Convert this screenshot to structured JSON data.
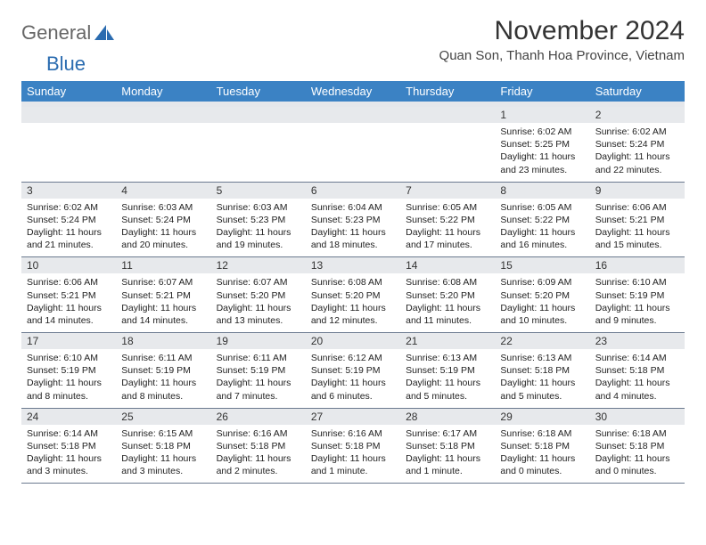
{
  "logo": {
    "text1": "General",
    "text2": "Blue"
  },
  "title": "November 2024",
  "location": "Quan Son, Thanh Hoa Province, Vietnam",
  "colors": {
    "header_bg": "#3b82c4",
    "header_text": "#ffffff",
    "daynum_bg": "#e7e9ec",
    "border": "#6b7a8f",
    "logo_blue": "#2b6cb0",
    "logo_gray": "#666666",
    "body_text": "#222222",
    "page_bg": "#ffffff"
  },
  "day_headers": [
    "Sunday",
    "Monday",
    "Tuesday",
    "Wednesday",
    "Thursday",
    "Friday",
    "Saturday"
  ],
  "weeks": [
    [
      null,
      null,
      null,
      null,
      null,
      {
        "n": "1",
        "sr": "Sunrise: 6:02 AM",
        "ss": "Sunset: 5:25 PM",
        "dl1": "Daylight: 11 hours",
        "dl2": "and 23 minutes."
      },
      {
        "n": "2",
        "sr": "Sunrise: 6:02 AM",
        "ss": "Sunset: 5:24 PM",
        "dl1": "Daylight: 11 hours",
        "dl2": "and 22 minutes."
      }
    ],
    [
      {
        "n": "3",
        "sr": "Sunrise: 6:02 AM",
        "ss": "Sunset: 5:24 PM",
        "dl1": "Daylight: 11 hours",
        "dl2": "and 21 minutes."
      },
      {
        "n": "4",
        "sr": "Sunrise: 6:03 AM",
        "ss": "Sunset: 5:24 PM",
        "dl1": "Daylight: 11 hours",
        "dl2": "and 20 minutes."
      },
      {
        "n": "5",
        "sr": "Sunrise: 6:03 AM",
        "ss": "Sunset: 5:23 PM",
        "dl1": "Daylight: 11 hours",
        "dl2": "and 19 minutes."
      },
      {
        "n": "6",
        "sr": "Sunrise: 6:04 AM",
        "ss": "Sunset: 5:23 PM",
        "dl1": "Daylight: 11 hours",
        "dl2": "and 18 minutes."
      },
      {
        "n": "7",
        "sr": "Sunrise: 6:05 AM",
        "ss": "Sunset: 5:22 PM",
        "dl1": "Daylight: 11 hours",
        "dl2": "and 17 minutes."
      },
      {
        "n": "8",
        "sr": "Sunrise: 6:05 AM",
        "ss": "Sunset: 5:22 PM",
        "dl1": "Daylight: 11 hours",
        "dl2": "and 16 minutes."
      },
      {
        "n": "9",
        "sr": "Sunrise: 6:06 AM",
        "ss": "Sunset: 5:21 PM",
        "dl1": "Daylight: 11 hours",
        "dl2": "and 15 minutes."
      }
    ],
    [
      {
        "n": "10",
        "sr": "Sunrise: 6:06 AM",
        "ss": "Sunset: 5:21 PM",
        "dl1": "Daylight: 11 hours",
        "dl2": "and 14 minutes."
      },
      {
        "n": "11",
        "sr": "Sunrise: 6:07 AM",
        "ss": "Sunset: 5:21 PM",
        "dl1": "Daylight: 11 hours",
        "dl2": "and 14 minutes."
      },
      {
        "n": "12",
        "sr": "Sunrise: 6:07 AM",
        "ss": "Sunset: 5:20 PM",
        "dl1": "Daylight: 11 hours",
        "dl2": "and 13 minutes."
      },
      {
        "n": "13",
        "sr": "Sunrise: 6:08 AM",
        "ss": "Sunset: 5:20 PM",
        "dl1": "Daylight: 11 hours",
        "dl2": "and 12 minutes."
      },
      {
        "n": "14",
        "sr": "Sunrise: 6:08 AM",
        "ss": "Sunset: 5:20 PM",
        "dl1": "Daylight: 11 hours",
        "dl2": "and 11 minutes."
      },
      {
        "n": "15",
        "sr": "Sunrise: 6:09 AM",
        "ss": "Sunset: 5:20 PM",
        "dl1": "Daylight: 11 hours",
        "dl2": "and 10 minutes."
      },
      {
        "n": "16",
        "sr": "Sunrise: 6:10 AM",
        "ss": "Sunset: 5:19 PM",
        "dl1": "Daylight: 11 hours",
        "dl2": "and 9 minutes."
      }
    ],
    [
      {
        "n": "17",
        "sr": "Sunrise: 6:10 AM",
        "ss": "Sunset: 5:19 PM",
        "dl1": "Daylight: 11 hours",
        "dl2": "and 8 minutes."
      },
      {
        "n": "18",
        "sr": "Sunrise: 6:11 AM",
        "ss": "Sunset: 5:19 PM",
        "dl1": "Daylight: 11 hours",
        "dl2": "and 8 minutes."
      },
      {
        "n": "19",
        "sr": "Sunrise: 6:11 AM",
        "ss": "Sunset: 5:19 PM",
        "dl1": "Daylight: 11 hours",
        "dl2": "and 7 minutes."
      },
      {
        "n": "20",
        "sr": "Sunrise: 6:12 AM",
        "ss": "Sunset: 5:19 PM",
        "dl1": "Daylight: 11 hours",
        "dl2": "and 6 minutes."
      },
      {
        "n": "21",
        "sr": "Sunrise: 6:13 AM",
        "ss": "Sunset: 5:19 PM",
        "dl1": "Daylight: 11 hours",
        "dl2": "and 5 minutes."
      },
      {
        "n": "22",
        "sr": "Sunrise: 6:13 AM",
        "ss": "Sunset: 5:18 PM",
        "dl1": "Daylight: 11 hours",
        "dl2": "and 5 minutes."
      },
      {
        "n": "23",
        "sr": "Sunrise: 6:14 AM",
        "ss": "Sunset: 5:18 PM",
        "dl1": "Daylight: 11 hours",
        "dl2": "and 4 minutes."
      }
    ],
    [
      {
        "n": "24",
        "sr": "Sunrise: 6:14 AM",
        "ss": "Sunset: 5:18 PM",
        "dl1": "Daylight: 11 hours",
        "dl2": "and 3 minutes."
      },
      {
        "n": "25",
        "sr": "Sunrise: 6:15 AM",
        "ss": "Sunset: 5:18 PM",
        "dl1": "Daylight: 11 hours",
        "dl2": "and 3 minutes."
      },
      {
        "n": "26",
        "sr": "Sunrise: 6:16 AM",
        "ss": "Sunset: 5:18 PM",
        "dl1": "Daylight: 11 hours",
        "dl2": "and 2 minutes."
      },
      {
        "n": "27",
        "sr": "Sunrise: 6:16 AM",
        "ss": "Sunset: 5:18 PM",
        "dl1": "Daylight: 11 hours",
        "dl2": "and 1 minute."
      },
      {
        "n": "28",
        "sr": "Sunrise: 6:17 AM",
        "ss": "Sunset: 5:18 PM",
        "dl1": "Daylight: 11 hours",
        "dl2": "and 1 minute."
      },
      {
        "n": "29",
        "sr": "Sunrise: 6:18 AM",
        "ss": "Sunset: 5:18 PM",
        "dl1": "Daylight: 11 hours",
        "dl2": "and 0 minutes."
      },
      {
        "n": "30",
        "sr": "Sunrise: 6:18 AM",
        "ss": "Sunset: 5:18 PM",
        "dl1": "Daylight: 11 hours",
        "dl2": "and 0 minutes."
      }
    ]
  ]
}
